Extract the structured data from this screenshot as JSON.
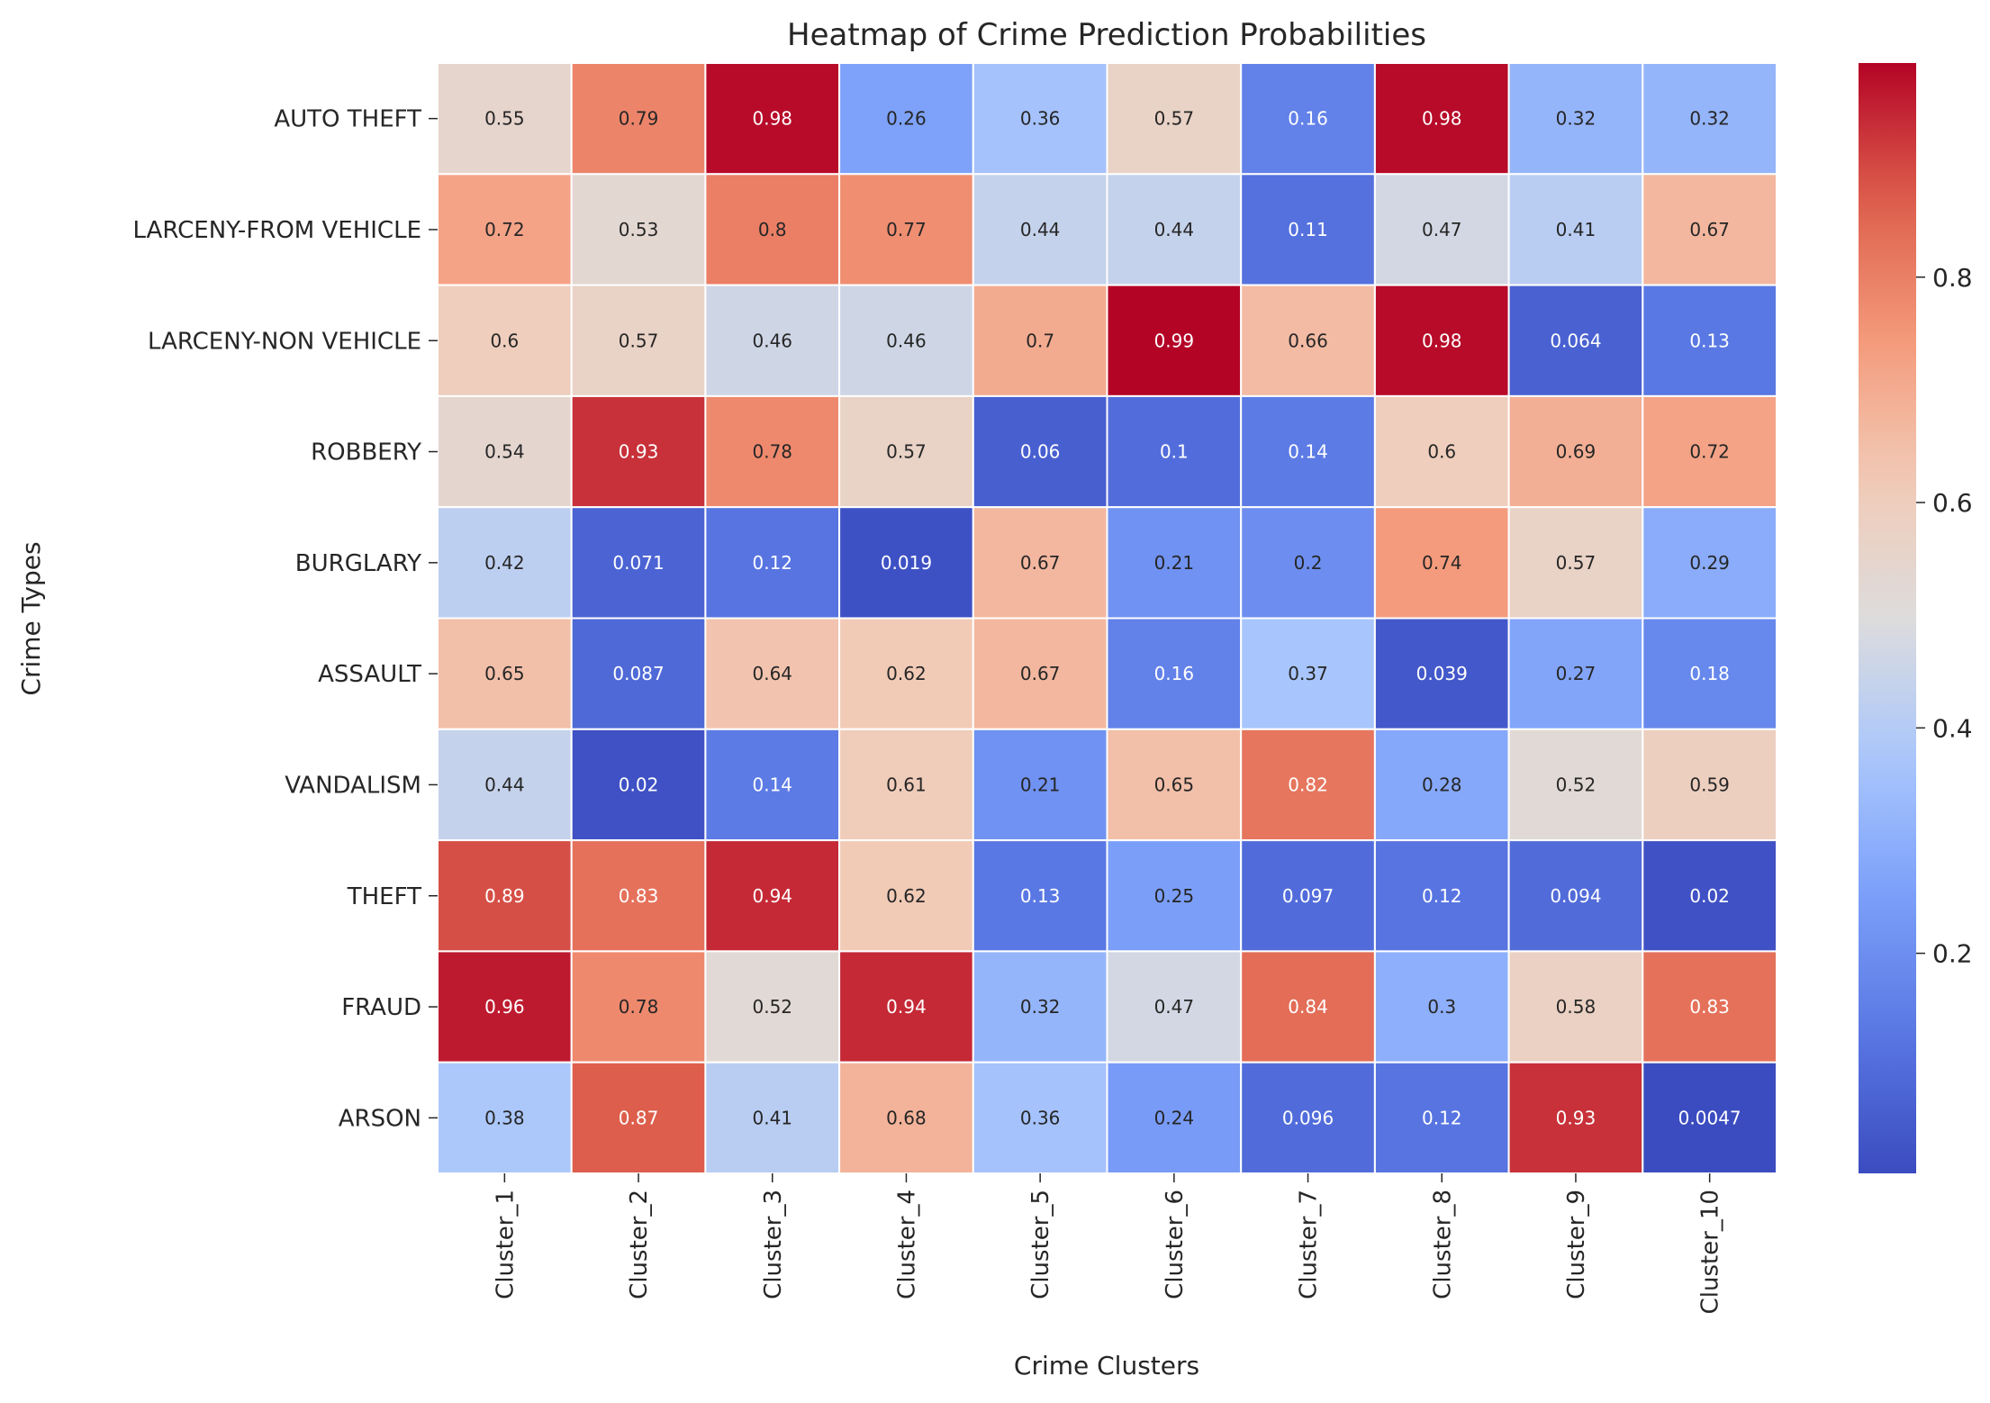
{
  "chart_data": {
    "type": "heatmap",
    "title": "Heatmap of Crime Prediction Probabilities",
    "xlabel": "Crime Clusters",
    "ylabel": "Crime Types",
    "colormap": "coolwarm",
    "colorbar": {
      "ticks": [
        "0.2",
        "0.4",
        "0.6",
        "0.8"
      ],
      "tick_values": [
        0.2,
        0.4,
        0.6,
        0.8
      ],
      "vmin": 0.0047,
      "vmax": 0.99
    },
    "columns": [
      "Cluster_1",
      "Cluster_2",
      "Cluster_3",
      "Cluster_4",
      "Cluster_5",
      "Cluster_6",
      "Cluster_7",
      "Cluster_8",
      "Cluster_9",
      "Cluster_10"
    ],
    "rows": [
      "AUTO THEFT",
      "LARCENY-FROM VEHICLE",
      "LARCENY-NON VEHICLE",
      "ROBBERY",
      "BURGLARY",
      "ASSAULT",
      "VANDALISM",
      "THEFT",
      "FRAUD",
      "ARSON"
    ],
    "labels": [
      [
        "0.55",
        "0.79",
        "0.98",
        "0.26",
        "0.36",
        "0.57",
        "0.16",
        "0.98",
        "0.32",
        "0.32"
      ],
      [
        "0.72",
        "0.53",
        "0.8",
        "0.77",
        "0.44",
        "0.44",
        "0.11",
        "0.47",
        "0.41",
        "0.67"
      ],
      [
        "0.6",
        "0.57",
        "0.46",
        "0.46",
        "0.7",
        "0.99",
        "0.66",
        "0.98",
        "0.064",
        "0.13"
      ],
      [
        "0.54",
        "0.93",
        "0.78",
        "0.57",
        "0.06",
        "0.1",
        "0.14",
        "0.6",
        "0.69",
        "0.72"
      ],
      [
        "0.42",
        "0.071",
        "0.12",
        "0.019",
        "0.67",
        "0.21",
        "0.2",
        "0.74",
        "0.57",
        "0.29"
      ],
      [
        "0.65",
        "0.087",
        "0.64",
        "0.62",
        "0.67",
        "0.16",
        "0.37",
        "0.039",
        "0.27",
        "0.18"
      ],
      [
        "0.44",
        "0.02",
        "0.14",
        "0.61",
        "0.21",
        "0.65",
        "0.82",
        "0.28",
        "0.52",
        "0.59"
      ],
      [
        "0.89",
        "0.83",
        "0.94",
        "0.62",
        "0.13",
        "0.25",
        "0.097",
        "0.12",
        "0.094",
        "0.02"
      ],
      [
        "0.96",
        "0.78",
        "0.52",
        "0.94",
        "0.32",
        "0.47",
        "0.84",
        "0.3",
        "0.58",
        "0.83"
      ],
      [
        "0.38",
        "0.87",
        "0.41",
        "0.68",
        "0.36",
        "0.24",
        "0.096",
        "0.12",
        "0.93",
        "0.0047"
      ]
    ]
  }
}
